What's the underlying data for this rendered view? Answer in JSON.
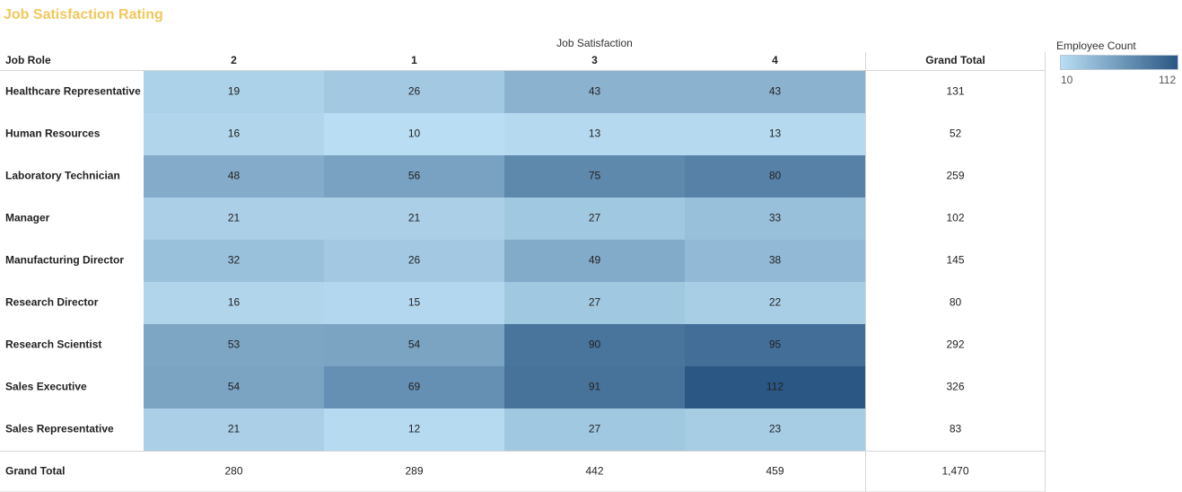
{
  "title": "Job Satisfaction Rating",
  "legend": {
    "title": "Employee Count",
    "min_label": "10",
    "max_label": "112",
    "color_low": "#b9def3",
    "color_high": "#2a5784"
  },
  "chart_data": {
    "type": "heatmap",
    "column_group_label": "Job Satisfaction",
    "row_header": "Job Role",
    "columns": [
      "2",
      "1",
      "3",
      "4"
    ],
    "rows": [
      "Healthcare Representative",
      "Human Resources",
      "Laboratory Technician",
      "Manager",
      "Manufacturing Director",
      "Research Director",
      "Research Scientist",
      "Sales Executive",
      "Sales Representative"
    ],
    "values": [
      [
        19,
        26,
        43,
        43
      ],
      [
        16,
        10,
        13,
        13
      ],
      [
        48,
        56,
        75,
        80
      ],
      [
        21,
        21,
        27,
        33
      ],
      [
        32,
        26,
        49,
        38
      ],
      [
        16,
        15,
        27,
        22
      ],
      [
        53,
        54,
        90,
        95
      ],
      [
        54,
        69,
        91,
        112
      ],
      [
        21,
        12,
        27,
        23
      ]
    ],
    "row_totals": [
      "131",
      "52",
      "259",
      "102",
      "145",
      "80",
      "292",
      "326",
      "83"
    ],
    "column_totals": [
      "280",
      "289",
      "442",
      "459"
    ],
    "grand_total": "1,470",
    "grand_total_label": "Grand Total",
    "color_range": [
      10,
      112
    ]
  }
}
